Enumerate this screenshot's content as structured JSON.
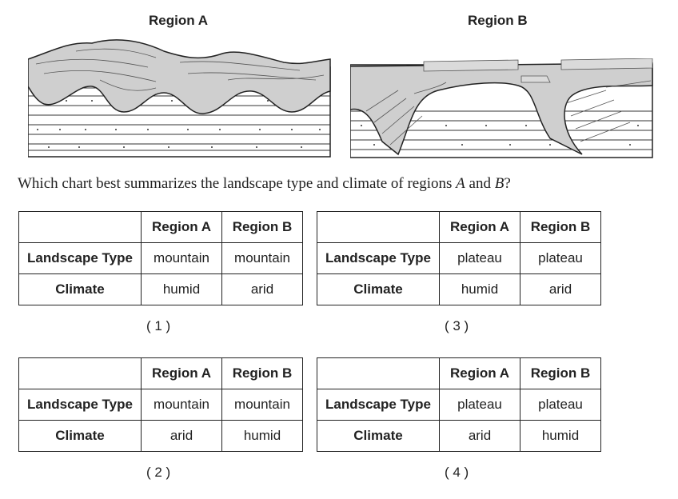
{
  "diagram": {
    "region_a_title": "Region A",
    "region_b_title": "Region B"
  },
  "question": {
    "prefix": "Which chart best summarizes the landscape type and climate of regions ",
    "a": "A",
    "mid": " and ",
    "b": "B",
    "suffix": "?"
  },
  "choices": [
    {
      "label": "( 1 )",
      "header_a": "Region A",
      "header_b": "Region B",
      "row1_label": "Landscape Type",
      "row1_a": "mountain",
      "row1_b": "mountain",
      "row2_label": "Climate",
      "row2_a": "humid",
      "row2_b": "arid"
    },
    {
      "label": "( 2 )",
      "header_a": "Region A",
      "header_b": "Region B",
      "row1_label": "Landscape Type",
      "row1_a": "mountain",
      "row1_b": "mountain",
      "row2_label": "Climate",
      "row2_a": "arid",
      "row2_b": "humid"
    },
    {
      "label": "( 3 )",
      "header_a": "Region A",
      "header_b": "Region B",
      "row1_label": "Landscape Type",
      "row1_a": "plateau",
      "row1_b": "plateau",
      "row2_label": "Climate",
      "row2_a": "humid",
      "row2_b": "arid"
    },
    {
      "label": "( 4 )",
      "header_a": "Region A",
      "header_b": "Region B",
      "row1_label": "Landscape Type",
      "row1_a": "plateau",
      "row1_b": "plateau",
      "row2_label": "Climate",
      "row2_a": "arid",
      "row2_b": "humid"
    }
  ]
}
